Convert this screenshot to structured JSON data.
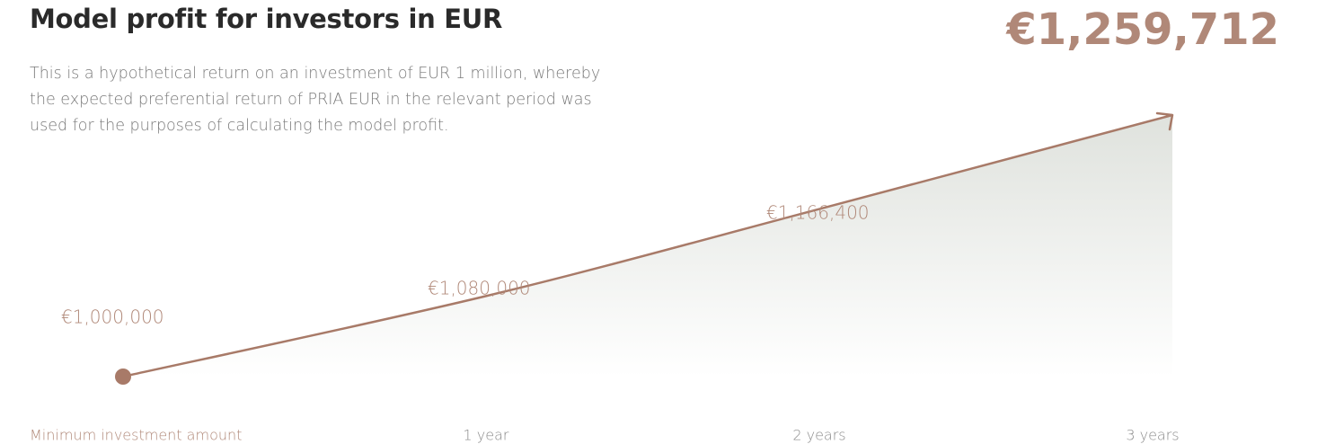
{
  "chart_data": {
    "type": "line",
    "title": "Model profit for investors in EUR",
    "subtitle": "This is a  hypothetical return on an investment of EUR 1 million, whereby the expected preferential return of PRIA EUR in the relevant period was used for the purposes of calculating the model profit.",
    "categories": [
      "Minimum investment amount",
      "1 year",
      "2 years",
      "3 years"
    ],
    "values": [
      1000000,
      1080000,
      1166400,
      1259712
    ],
    "value_labels": [
      "€1,000,000",
      "€1,080,000",
      "€1,166,400",
      "€1,259,712"
    ],
    "color": "#a87a68"
  }
}
